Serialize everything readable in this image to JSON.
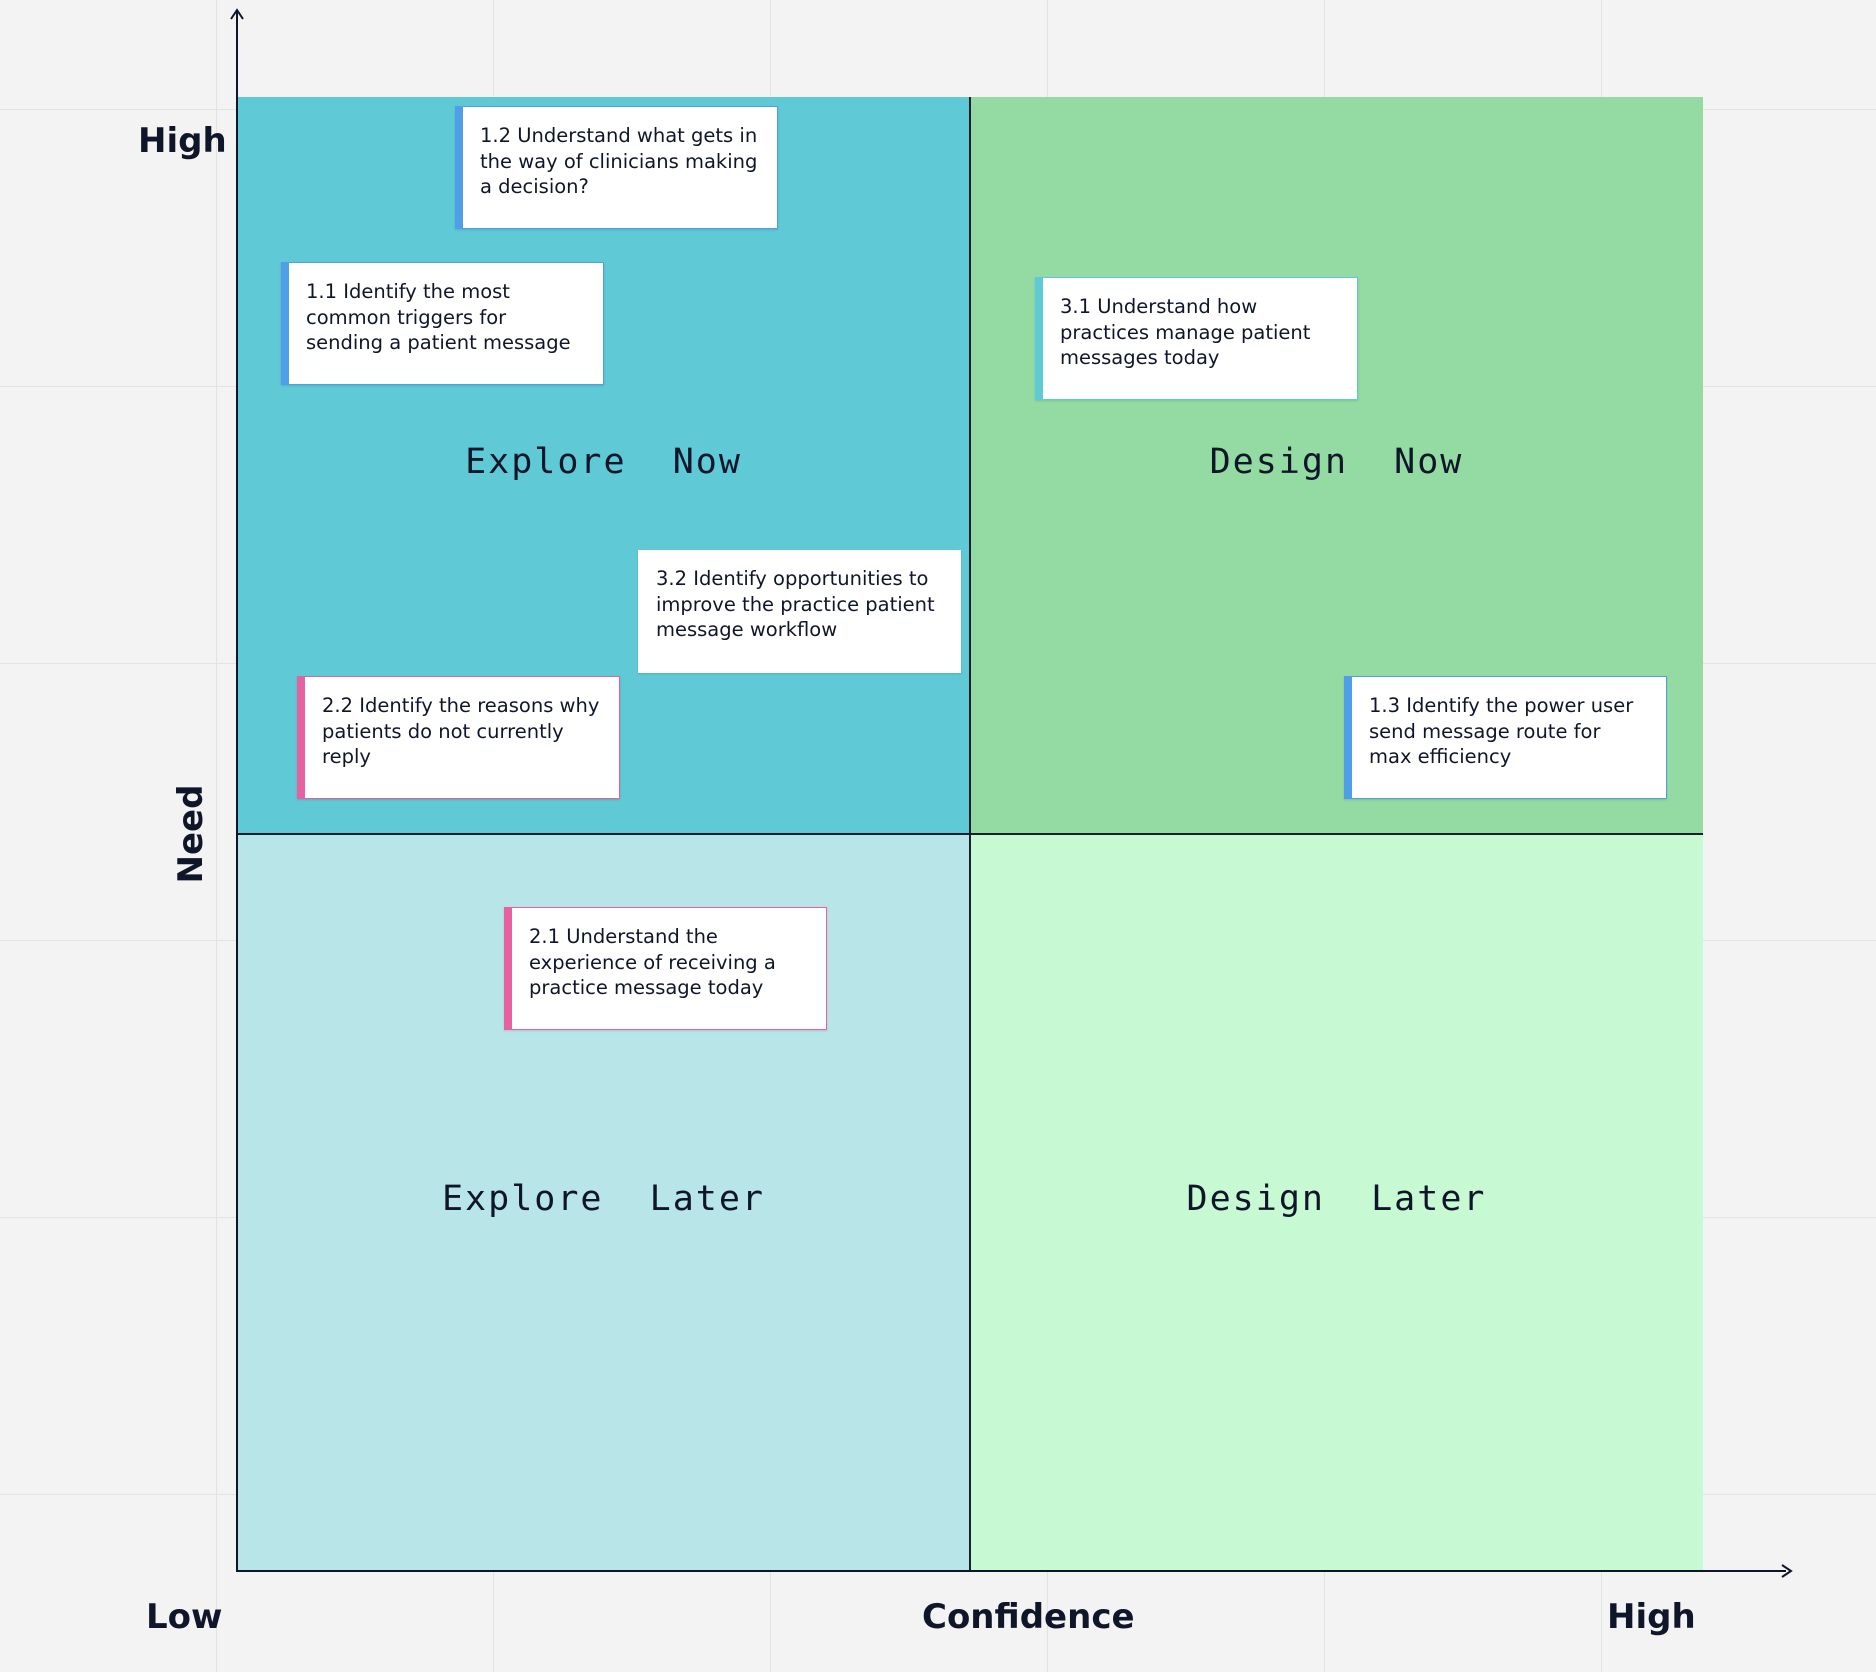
{
  "axes": {
    "y_title": "Need",
    "y_high": "High",
    "x_title": "Confidence",
    "x_low": "Low",
    "x_high": "High"
  },
  "quadrants": {
    "top_left": {
      "label": "Explore  Now",
      "color": "#5fc9d6"
    },
    "top_right": {
      "label": "Design  Now",
      "color": "#93dba2"
    },
    "bottom_left": {
      "label": "Explore  Later",
      "color": "#b7e5e8"
    },
    "bottom_right": {
      "label": "Design  Later",
      "color": "#c7fad3"
    }
  },
  "notes": [
    {
      "id": "1.2",
      "text": "1.2 Understand what gets in the way of clinicians making a decision?",
      "accent": "blue"
    },
    {
      "id": "1.1",
      "text": "1.1 Identify the most common triggers for sending a patient message",
      "accent": "blue"
    },
    {
      "id": "3.1",
      "text": "3.1 Understand how practices manage  patient messages today",
      "accent": "teal"
    },
    {
      "id": "3.2",
      "text": "3.2 Identify opportunities to improve the practice patient message workflow",
      "accent": "none"
    },
    {
      "id": "2.2",
      "text": "2.2 Identify the reasons why patients do not currently reply",
      "accent": "pink"
    },
    {
      "id": "1.3",
      "text": "1.3 Identify the power user send message route for max efficiency",
      "accent": "blue"
    },
    {
      "id": "2.1",
      "text": "2.1 Understand the experience of receiving a practice message today",
      "accent": "pink"
    }
  ],
  "colors": {
    "axis": "#10162a",
    "accent_blue": "#4f9ee8",
    "accent_pink": "#e7609f",
    "accent_teal": "#5fc9d6"
  }
}
